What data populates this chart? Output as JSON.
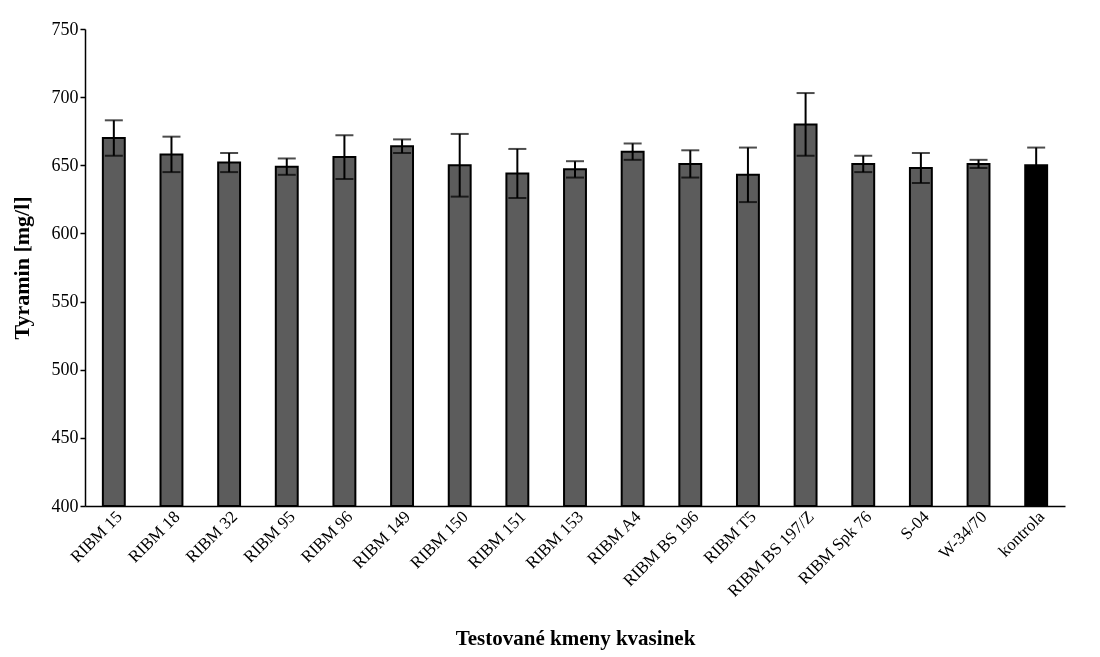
{
  "chart_data": {
    "type": "bar",
    "xlabel": "Testované kmeny kvasinek",
    "ylabel": "Tyramin [mg/l]",
    "categories": [
      "RIBM 15",
      "RIBM 18",
      "RIBM 32",
      "RIBM 95",
      "RIBM 96",
      "RIBM 149",
      "RIBM 150",
      "RIBM 151",
      "RIBM 153",
      "RIBM A4",
      "RIBM BS 196",
      "RIBM T5",
      "RIBM BS 197/Z",
      "RIBM Spk 76",
      "S-04",
      "W-34/70",
      "kontrola"
    ],
    "values": [
      670,
      658,
      652,
      649,
      656,
      664,
      650,
      644,
      647,
      660,
      651,
      643,
      680,
      651,
      648,
      651,
      650
    ],
    "errors": [
      13,
      13,
      7,
      6,
      16,
      5,
      23,
      18,
      6,
      6,
      10,
      20,
      23,
      6,
      11,
      3,
      13
    ],
    "colors": [
      "#5c5c5c",
      "#5c5c5c",
      "#5c5c5c",
      "#5c5c5c",
      "#5c5c5c",
      "#5c5c5c",
      "#5c5c5c",
      "#5c5c5c",
      "#5c5c5c",
      "#5c5c5c",
      "#5c5c5c",
      "#5c5c5c",
      "#5c5c5c",
      "#5c5c5c",
      "#5c5c5c",
      "#5c5c5c",
      "#000000"
    ],
    "ylim": [
      400,
      750
    ],
    "yticks": [
      400,
      450,
      500,
      550,
      600,
      650,
      700,
      750
    ],
    "grid": false
  }
}
